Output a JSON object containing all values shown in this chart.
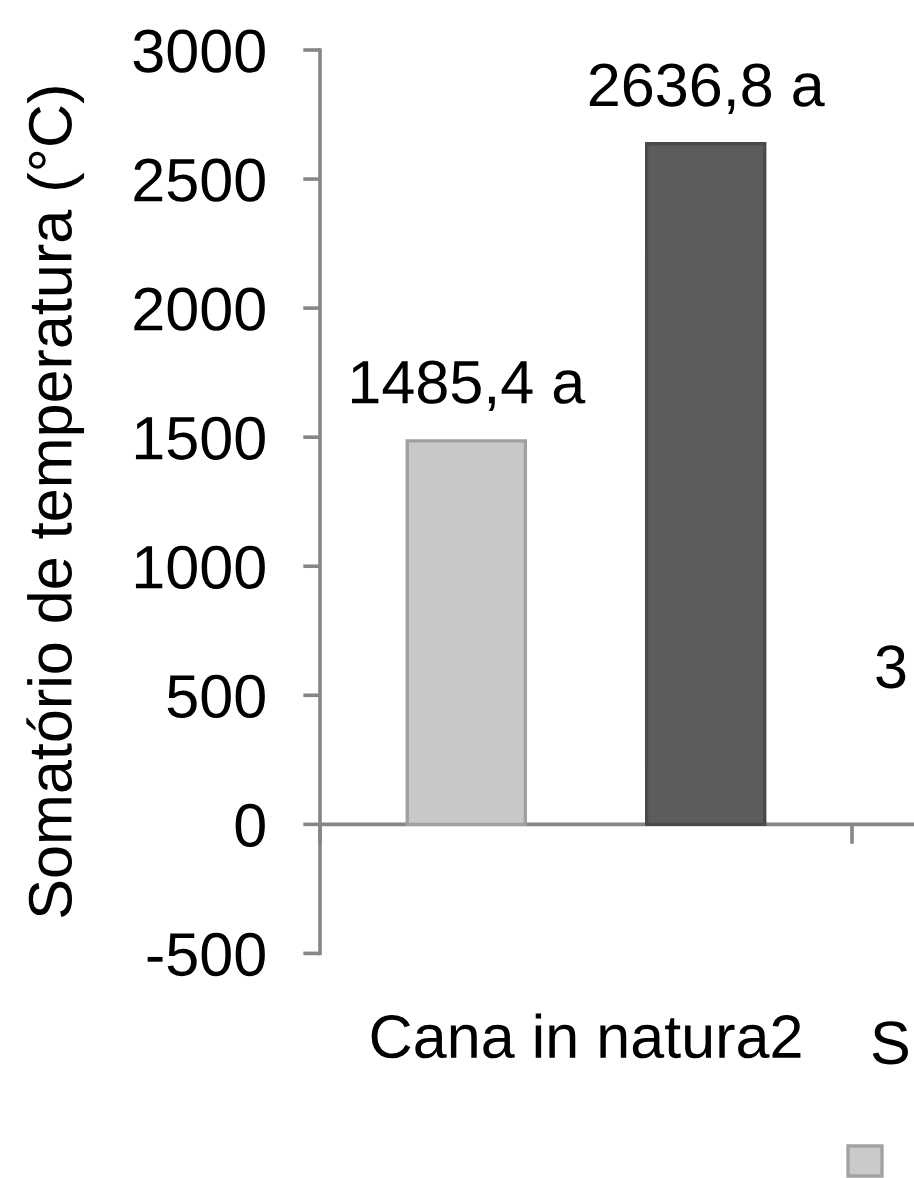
{
  "chart_data": {
    "type": "bar",
    "ylabel": "Somatório de temperatura (°C)",
    "categories": [
      "Cana in natura2"
    ],
    "series": [
      {
        "color": "#c8c8c8",
        "values": [
          1485.4
        ],
        "value_labels": [
          "1485,4 a"
        ]
      },
      {
        "color": "#5c5c5c",
        "values": [
          2636.8
        ],
        "value_labels": [
          "2636,8 a"
        ]
      }
    ],
    "ylim": [
      -500,
      3000
    ],
    "yticks": [
      -500,
      0,
      500,
      1000,
      1500,
      2000,
      2500,
      3000
    ],
    "annotations": [
      "3",
      "S"
    ]
  }
}
